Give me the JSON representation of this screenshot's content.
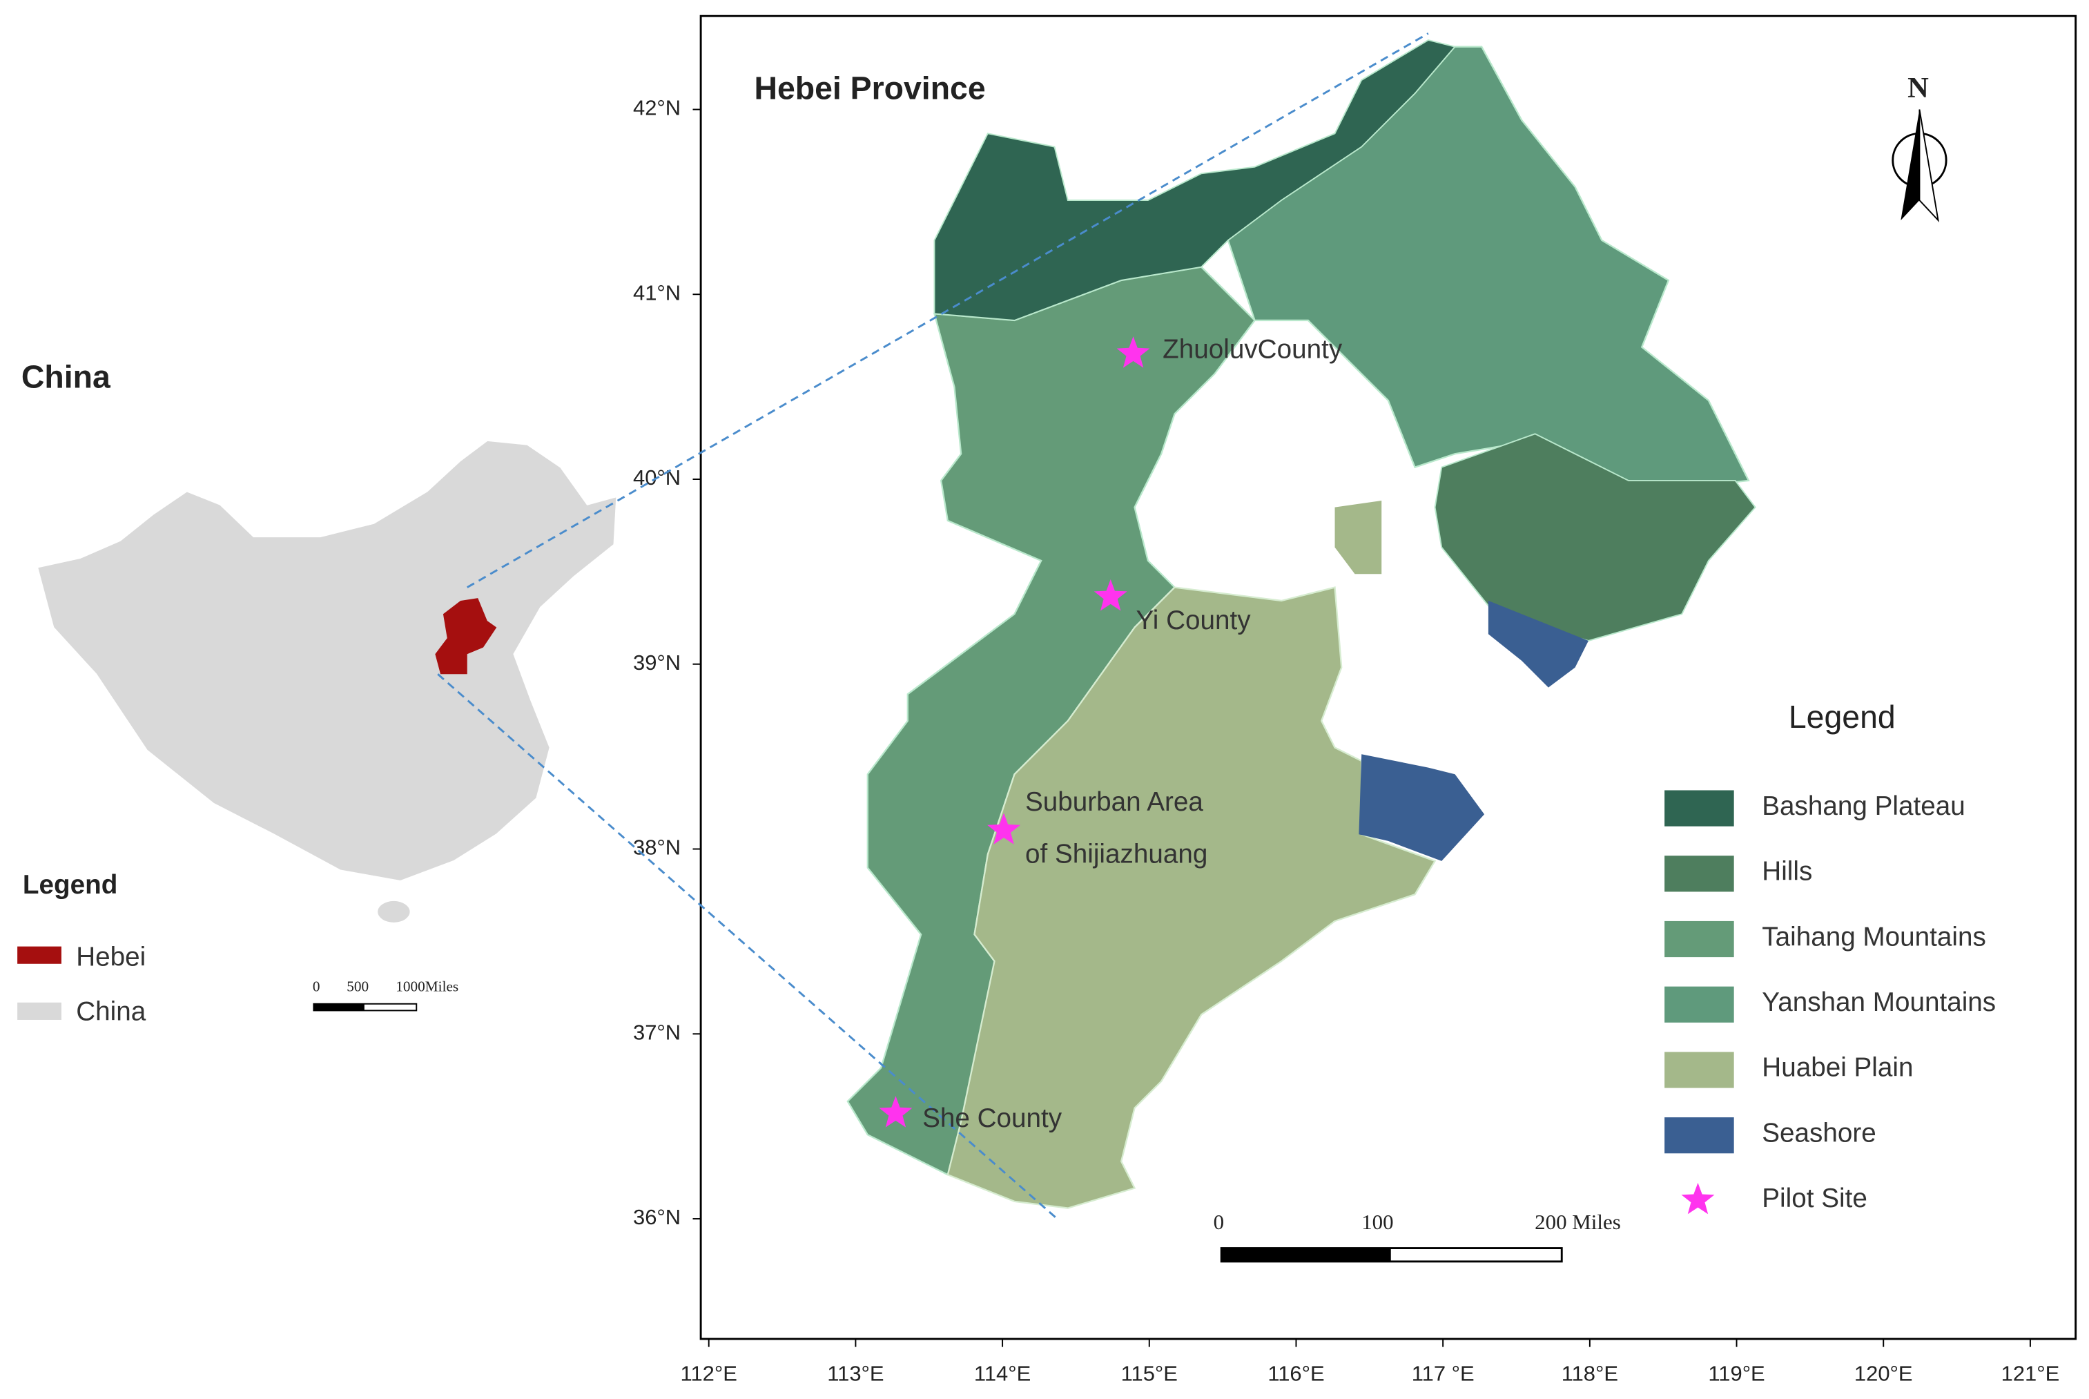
{
  "inset": {
    "title": "China",
    "legend_title": "Legend",
    "legend": [
      "Hebei",
      "China"
    ],
    "scale_labels": [
      "0",
      "500",
      "1000Miles"
    ]
  },
  "map": {
    "title": "Hebei Province",
    "north": "N",
    "lat_labels": [
      "42°N",
      "41°N",
      "40°N",
      "39°N",
      "38°N",
      "37°N",
      "36°N"
    ],
    "lon_labels": [
      "112°E",
      "113°E",
      "114°E",
      "115°E",
      "116°E",
      "117 °E",
      "118°E",
      "119°E",
      "120°E",
      "121°E"
    ],
    "sites": [
      {
        "lines": [
          "ZhuoluvCounty"
        ]
      },
      {
        "lines": [
          "Yi County"
        ]
      },
      {
        "lines": [
          "Suburban Area",
          "of Shijiazhuang"
        ]
      },
      {
        "lines": [
          "She County"
        ]
      }
    ],
    "scale_labels": [
      "0",
      "100",
      "200 Miles"
    ],
    "legend_title": "Legend",
    "legend": [
      "Bashang Plateau",
      "Hills",
      "Taihang Mountains",
      "Yanshan Mountains",
      "Huabei Plain",
      "Seashore",
      "Pilot Site"
    ]
  }
}
